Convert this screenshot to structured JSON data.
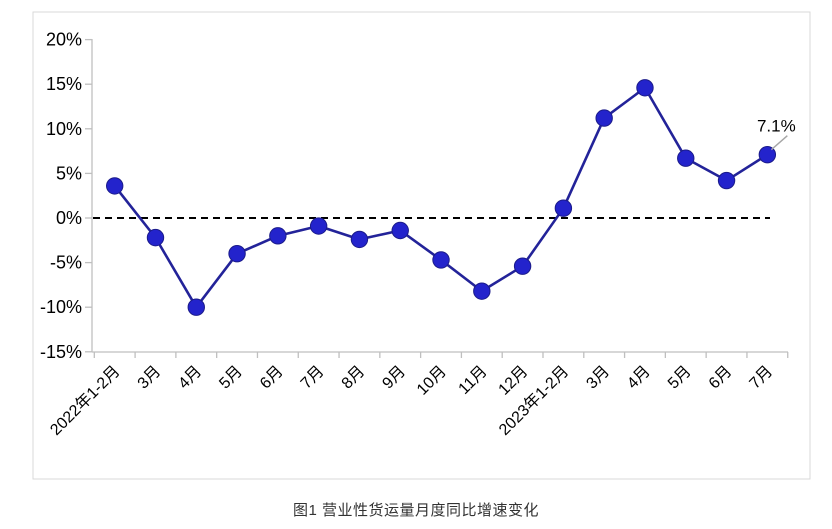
{
  "chart_data": {
    "type": "line",
    "title": "图1 营业性货运量月度同比增速变化",
    "series_name": "营业性货运量月度同比增速",
    "categories": [
      "2022年1-2月",
      "3月",
      "4月",
      "5月",
      "6月",
      "7月",
      "8月",
      "9月",
      "10月",
      "11月",
      "12月",
      "2023年1-2月",
      "3月",
      "4月",
      "5月",
      "6月",
      "7月"
    ],
    "values": [
      3.6,
      -2.2,
      -10.0,
      -4.0,
      -2.0,
      -0.9,
      -2.4,
      -1.4,
      -4.7,
      -8.2,
      -5.4,
      1.1,
      11.2,
      14.6,
      6.7,
      4.2,
      7.1
    ],
    "unit": "%",
    "ylim": [
      -15,
      20
    ],
    "ytick_step": 5,
    "ytick_labels": [
      "20%",
      "15%",
      "10%",
      "5%",
      "0%",
      "-5%",
      "-10%",
      "-15%"
    ],
    "ytick_values": [
      20,
      15,
      10,
      5,
      0,
      -5,
      -10,
      -15
    ],
    "zero_line": {
      "style": "dashed",
      "color": "#000000"
    },
    "grid": false,
    "legend": "none",
    "annotation": {
      "text": "7.1%",
      "point_index": 16
    },
    "colors": {
      "line": "#232399",
      "marker": "#2323CC",
      "marker_edge": "#1B1B8A",
      "axis": "#BFBFBF",
      "border": "#D9D9D9",
      "leader": "#A6A6A6",
      "label_text": "#000000",
      "caption_text": "#333333"
    }
  }
}
